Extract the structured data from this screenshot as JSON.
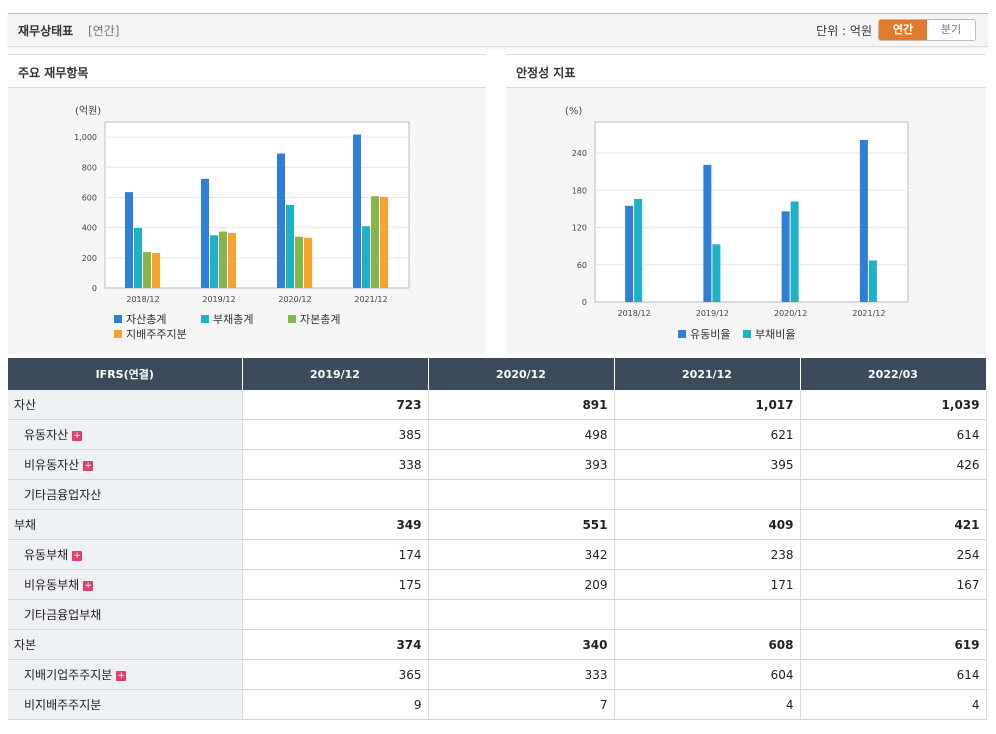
{
  "header": {
    "title": "재무상태표",
    "subtitle": "[연간]",
    "unit_label": "단위 : 억원",
    "toggle": {
      "annual": "연간",
      "quarter": "분기"
    }
  },
  "panels": {
    "left_title": "주요 재무항목",
    "right_title": "안정성 지표"
  },
  "chart_data": [
    {
      "type": "bar",
      "title": "",
      "ylabel": "(억원)",
      "categories": [
        "2018/12",
        "2019/12",
        "2020/12",
        "2021/12"
      ],
      "ylim": [
        0,
        1100
      ],
      "yticks": [
        0,
        200,
        400,
        600,
        800,
        1000
      ],
      "ytick_labels": [
        "0",
        "200",
        "400",
        "600",
        "800",
        "1,000"
      ],
      "grid": true,
      "legend": "bottom",
      "series": [
        {
          "name": "자산총계",
          "color": "#2f7ed8",
          "values": [
            635,
            723,
            891,
            1017
          ]
        },
        {
          "name": "부채총계",
          "color": "#1fb1c6",
          "values": [
            398,
            349,
            551,
            409
          ]
        },
        {
          "name": "자본총계",
          "color": "#88b44e",
          "values": [
            238,
            374,
            340,
            608
          ]
        },
        {
          "name": "지배주주지분",
          "color": "#f7a32f",
          "values": [
            232,
            365,
            333,
            604
          ]
        }
      ]
    },
    {
      "type": "bar",
      "title": "",
      "ylabel": "(%)",
      "categories": [
        "2018/12",
        "2019/12",
        "2020/12",
        "2021/12"
      ],
      "ylim": [
        0,
        290
      ],
      "yticks": [
        0,
        60,
        120,
        180,
        240
      ],
      "ytick_labels": [
        "0",
        "60",
        "120",
        "180",
        "240"
      ],
      "grid": true,
      "legend": "bottom",
      "series": [
        {
          "name": "유동비율",
          "color": "#2f7ed8",
          "values": [
            155,
            221,
            146,
            261
          ]
        },
        {
          "name": "부채비율",
          "color": "#1fb1c6",
          "values": [
            166,
            93,
            162,
            67
          ]
        }
      ]
    }
  ],
  "table": {
    "header": [
      "IFRS(연결)",
      "2019/12",
      "2020/12",
      "2021/12",
      "2022/03"
    ],
    "rows": [
      {
        "label": "자산",
        "level": "top",
        "values": [
          "723",
          "891",
          "1,017",
          "1,039"
        ]
      },
      {
        "label": "유동자산",
        "level": "child",
        "expand": true,
        "values": [
          "385",
          "498",
          "621",
          "614"
        ]
      },
      {
        "label": "비유동자산",
        "level": "child",
        "expand": true,
        "values": [
          "338",
          "393",
          "395",
          "426"
        ]
      },
      {
        "label": "기타금융업자산",
        "level": "child",
        "values": [
          "",
          "",
          "",
          ""
        ]
      },
      {
        "label": "부채",
        "level": "top",
        "values": [
          "349",
          "551",
          "409",
          "421"
        ]
      },
      {
        "label": "유동부채",
        "level": "child",
        "expand": true,
        "values": [
          "174",
          "342",
          "238",
          "254"
        ]
      },
      {
        "label": "비유동부채",
        "level": "child",
        "expand": true,
        "values": [
          "175",
          "209",
          "171",
          "167"
        ]
      },
      {
        "label": "기타금융업부채",
        "level": "child",
        "values": [
          "",
          "",
          "",
          ""
        ]
      },
      {
        "label": "자본",
        "level": "top",
        "values": [
          "374",
          "340",
          "608",
          "619"
        ]
      },
      {
        "label": "지배기업주주지분",
        "level": "child",
        "expand": true,
        "values": [
          "365",
          "333",
          "604",
          "614"
        ]
      },
      {
        "label": "비지배주주지분",
        "level": "child",
        "values": [
          "9",
          "7",
          "4",
          "4"
        ]
      }
    ]
  },
  "icons": {
    "expand": "plus-icon",
    "expand_glyph": "+"
  }
}
